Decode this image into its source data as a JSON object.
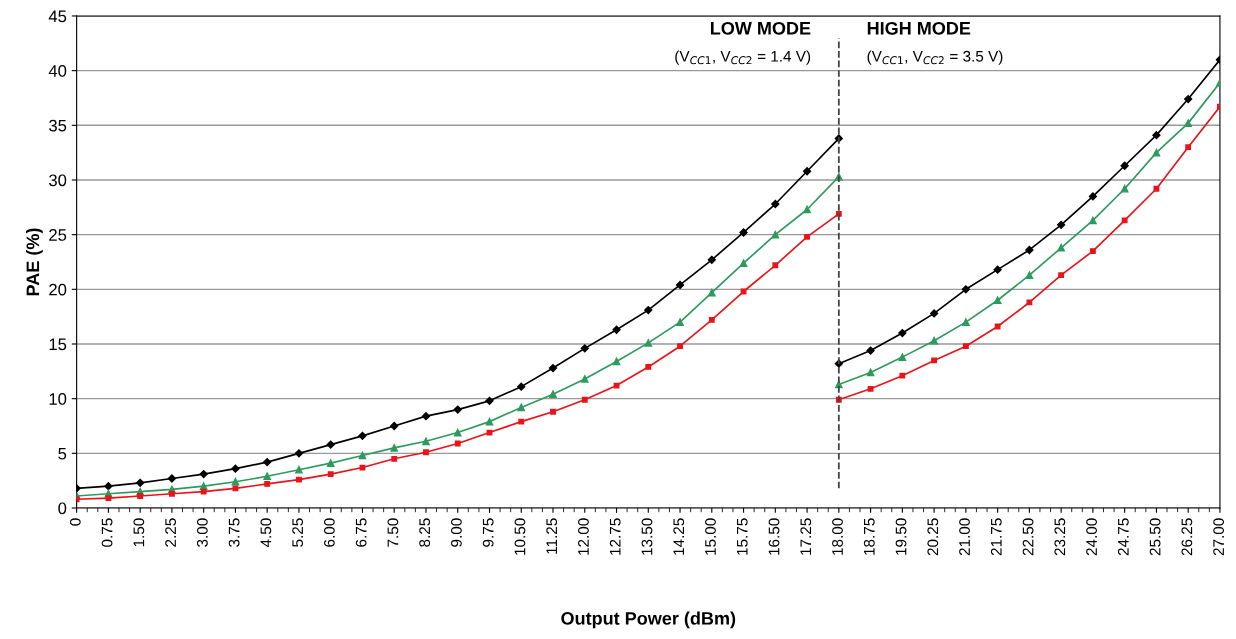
{
  "chart_data": {
    "type": "line",
    "xlabel": "Output Power (dBm)",
    "ylabel": "PAE (%)",
    "xlim": [
      0,
      27
    ],
    "ylim": [
      0,
      45
    ],
    "yticks": [
      0,
      5,
      10,
      15,
      20,
      25,
      30,
      35,
      40,
      45
    ],
    "xticks": [
      0,
      {
        "value": 0.75,
        "label": "0.75"
      },
      {
        "value": 1.5,
        "label": "1.50"
      },
      {
        "value": 2.25,
        "label": "2.25"
      },
      {
        "value": 3,
        "label": "3.00"
      },
      {
        "value": 3.75,
        "label": "3.75"
      },
      {
        "value": 4.5,
        "label": "4.50"
      },
      {
        "value": 5.25,
        "label": "5.25"
      },
      {
        "value": 6,
        "label": "6.00"
      },
      {
        "value": 6.75,
        "label": "6.75"
      },
      {
        "value": 7.5,
        "label": "7.50"
      },
      {
        "value": 8.25,
        "label": "8.25"
      },
      {
        "value": 9,
        "label": "9.00"
      },
      {
        "value": 9.75,
        "label": "9.75"
      },
      {
        "value": 10.5,
        "label": "10.50"
      },
      {
        "value": 11.25,
        "label": "11.25"
      },
      {
        "value": 12,
        "label": "12.00"
      },
      {
        "value": 12.75,
        "label": "12.75"
      },
      {
        "value": 13.5,
        "label": "13.50"
      },
      {
        "value": 14.25,
        "label": "14.25"
      },
      {
        "value": 15,
        "label": "15.00"
      },
      {
        "value": 15.75,
        "label": "15.75"
      },
      {
        "value": 16.5,
        "label": "16.50"
      },
      {
        "value": 17.25,
        "label": "17.25"
      },
      {
        "value": 18,
        "label": "18.00"
      },
      {
        "value": 18.75,
        "label": "18.75"
      },
      {
        "value": 19.5,
        "label": "19.50"
      },
      {
        "value": 20.25,
        "label": "20.25"
      },
      {
        "value": 21,
        "label": "21.00"
      },
      {
        "value": 21.75,
        "label": "21.75"
      },
      {
        "value": 22.5,
        "label": "22.50"
      },
      {
        "value": 23.25,
        "label": "23.25"
      },
      {
        "value": 24,
        "label": "24.00"
      },
      {
        "value": 24.75,
        "label": "24.75"
      },
      {
        "value": 25.5,
        "label": "25.50"
      },
      {
        "value": 26.25,
        "label": "26.25"
      },
      {
        "value": 27,
        "label": "27.00"
      }
    ],
    "grid": "y",
    "line_style": "solid",
    "series": [
      {
        "color": "#000000",
        "marker": "diamond",
        "x": [
          0,
          0.75,
          1.5,
          2.25,
          3,
          3.75,
          4.5,
          5.25,
          6,
          6.75,
          7.5,
          8.25,
          9,
          9.75,
          10.5,
          11.25,
          12,
          12.75,
          13.5,
          14.25,
          15,
          15.75,
          16.5,
          17.25,
          18
        ],
        "values": [
          1.8,
          2.0,
          2.3,
          2.7,
          3.1,
          3.6,
          4.2,
          5.0,
          5.8,
          6.6,
          7.5,
          8.4,
          9.0,
          9.8,
          11.1,
          12.8,
          14.6,
          16.3,
          18.1,
          20.4,
          22.7,
          25.2,
          27.8,
          30.8,
          33.8
        ]
      },
      {
        "color": "#2e9a5e",
        "marker": "triangle",
        "x": [
          0,
          0.75,
          1.5,
          2.25,
          3,
          3.75,
          4.5,
          5.25,
          6,
          6.75,
          7.5,
          8.25,
          9,
          9.75,
          10.5,
          11.25,
          12,
          12.75,
          13.5,
          14.25,
          15,
          15.75,
          16.5,
          17.25,
          18
        ],
        "values": [
          1.1,
          1.3,
          1.5,
          1.7,
          2.0,
          2.4,
          2.9,
          3.5,
          4.1,
          4.8,
          5.5,
          6.1,
          6.9,
          7.9,
          9.2,
          10.4,
          11.8,
          13.4,
          15.1,
          17.0,
          19.7,
          22.4,
          25.0,
          27.3,
          30.3
        ]
      },
      {
        "color": "#e8141b",
        "marker": "square",
        "x": [
          0,
          0.75,
          1.5,
          2.25,
          3,
          3.75,
          4.5,
          5.25,
          6,
          6.75,
          7.5,
          8.25,
          9,
          9.75,
          10.5,
          11.25,
          12,
          12.75,
          13.5,
          14.25,
          15,
          15.75,
          16.5,
          17.25,
          18
        ],
        "values": [
          0.8,
          0.9,
          1.1,
          1.3,
          1.5,
          1.8,
          2.2,
          2.6,
          3.1,
          3.7,
          4.5,
          5.1,
          5.9,
          6.9,
          7.9,
          8.8,
          9.9,
          11.2,
          12.9,
          14.8,
          17.2,
          19.8,
          22.2,
          24.8,
          26.9
        ]
      },
      {
        "color": "#000000",
        "marker": "diamond",
        "x": [
          18,
          18.75,
          19.5,
          20.25,
          21,
          21.75,
          22.5,
          23.25,
          24,
          24.75,
          25.5,
          26.25,
          27
        ],
        "values": [
          13.2,
          14.4,
          16.0,
          17.8,
          20.0,
          21.8,
          23.6,
          25.9,
          28.5,
          31.3,
          34.1,
          37.4,
          41.0
        ]
      },
      {
        "color": "#2e9a5e",
        "marker": "triangle",
        "x": [
          18,
          18.75,
          19.5,
          20.25,
          21,
          21.75,
          22.5,
          23.25,
          24,
          24.75,
          25.5,
          26.25,
          27
        ],
        "values": [
          11.3,
          12.4,
          13.8,
          15.3,
          17.0,
          19.0,
          21.3,
          23.8,
          26.3,
          29.2,
          32.5,
          35.2,
          38.9
        ]
      },
      {
        "color": "#e8141b",
        "marker": "square",
        "x": [
          18,
          18.75,
          19.5,
          20.25,
          21,
          21.75,
          22.5,
          23.25,
          24,
          24.75,
          25.5,
          26.25,
          27
        ],
        "values": [
          9.9,
          10.9,
          12.1,
          13.5,
          14.8,
          16.6,
          18.8,
          21.3,
          23.5,
          26.3,
          29.2,
          33.0,
          36.7
        ]
      }
    ],
    "ref_lines": [
      {
        "axis": "x",
        "value": 18,
        "color": "#444444",
        "line_style": "dashed"
      }
    ],
    "annotations": [
      "LOW MODE",
      "(V$_{CC1}$, V$_{CC2}$ = 1.4 V)",
      "HIGH MODE",
      "(V$_{CC1}$, V$_{CC2}$ = 3.5 V)"
    ]
  }
}
